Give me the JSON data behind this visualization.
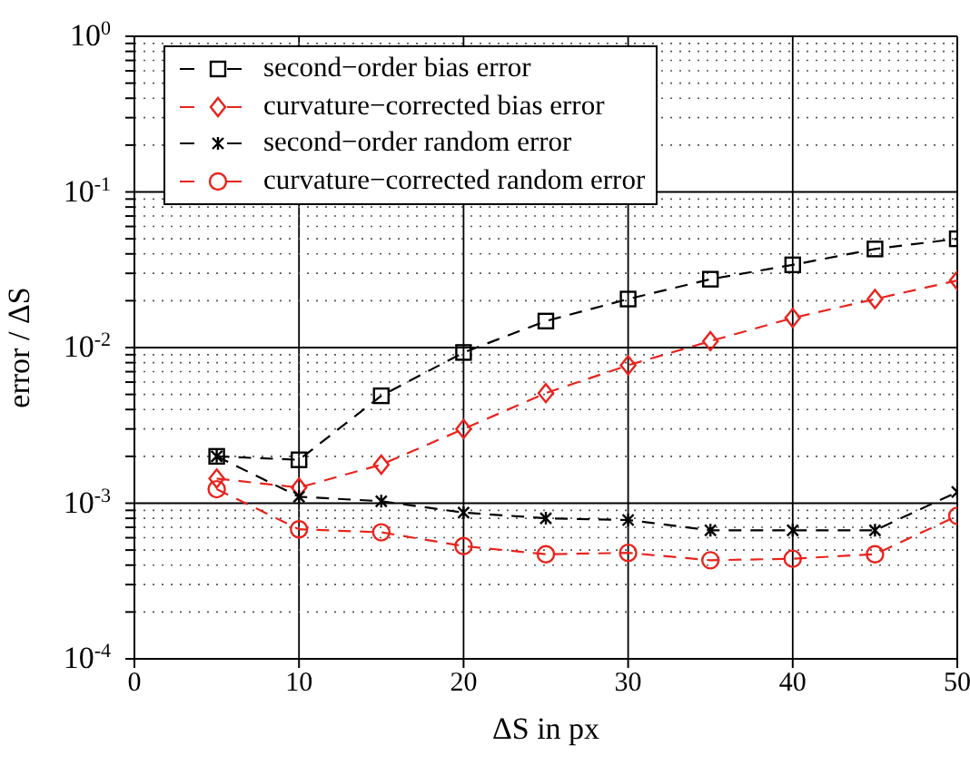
{
  "chart_data": {
    "type": "line",
    "xlabel": "ΔS in px",
    "ylabel": "error / ΔS",
    "log": "y",
    "grid": true,
    "legend": "top left",
    "line_style": "dashed",
    "x": [
      5,
      10,
      15,
      20,
      25,
      30,
      35,
      40,
      45,
      50
    ],
    "xlim": [
      0,
      50
    ],
    "xticks": [
      0,
      10,
      20,
      30,
      40,
      50
    ],
    "ylim": [
      0.0001,
      1
    ],
    "yticks": [
      {
        "value": 0.0001,
        "label": "10$^{-4}$"
      },
      {
        "value": 0.0002,
        "label": null
      },
      {
        "value": 0.0003,
        "label": null
      },
      {
        "value": 0.0004,
        "label": null
      },
      {
        "value": 0.0005,
        "label": null
      },
      {
        "value": 0.0006,
        "label": null
      },
      {
        "value": 0.0007,
        "label": null
      },
      {
        "value": 0.0008,
        "label": null
      },
      {
        "value": 0.0009,
        "label": null
      },
      {
        "value": 0.001,
        "label": "10$^{-3}$"
      },
      {
        "value": 0.002,
        "label": null
      },
      {
        "value": 0.003,
        "label": null
      },
      {
        "value": 0.004,
        "label": null
      },
      {
        "value": 0.005,
        "label": null
      },
      {
        "value": 0.006,
        "label": null
      },
      {
        "value": 0.007,
        "label": null
      },
      {
        "value": 0.008,
        "label": null
      },
      {
        "value": 0.009,
        "label": null
      },
      {
        "value": 0.01,
        "label": "10$^{-2}$"
      },
      {
        "value": 0.02,
        "label": null
      },
      {
        "value": 0.03,
        "label": null
      },
      {
        "value": 0.04,
        "label": null
      },
      {
        "value": 0.05,
        "label": null
      },
      {
        "value": 0.06,
        "label": null
      },
      {
        "value": 0.07,
        "label": null
      },
      {
        "value": 0.08,
        "label": null
      },
      {
        "value": 0.09,
        "label": null
      },
      {
        "value": 0.1,
        "label": "10$^{-1}$"
      },
      {
        "value": 0.2,
        "label": null
      },
      {
        "value": 0.3,
        "label": null
      },
      {
        "value": 0.4,
        "label": null
      },
      {
        "value": 0.5,
        "label": null
      },
      {
        "value": 0.6,
        "label": null
      },
      {
        "value": 0.7,
        "label": null
      },
      {
        "value": 0.8,
        "label": null
      },
      {
        "value": 0.9,
        "label": null
      },
      {
        "value": 1,
        "label": "10$^{0}$"
      }
    ],
    "series": [
      {
        "name": "second−order bias error",
        "color": "#000000",
        "marker": "square",
        "values": [
          0.002,
          0.0019,
          0.0049,
          0.0093,
          0.0148,
          0.0205,
          0.0275,
          0.034,
          0.043,
          0.05
        ]
      },
      {
        "name": "curvature−corrected bias error",
        "color": "#e8231c",
        "marker": "diamond",
        "values": [
          0.00144,
          0.00126,
          0.00177,
          0.003,
          0.0051,
          0.0077,
          0.011,
          0.0155,
          0.0205,
          0.027
        ]
      },
      {
        "name": "second−order random error",
        "color": "#000000",
        "marker": "cross",
        "values": [
          0.002,
          0.0011,
          0.00103,
          0.00087,
          0.0008,
          0.00078,
          0.00067,
          0.00067,
          0.00067,
          0.00118
        ]
      },
      {
        "name": "curvature−corrected random error",
        "color": "#e8231c",
        "marker": "circle",
        "values": [
          0.00123,
          0.00068,
          0.00065,
          0.00053,
          0.00047,
          0.00048,
          0.00043,
          0.00044,
          0.00047,
          0.00083
        ]
      }
    ]
  }
}
